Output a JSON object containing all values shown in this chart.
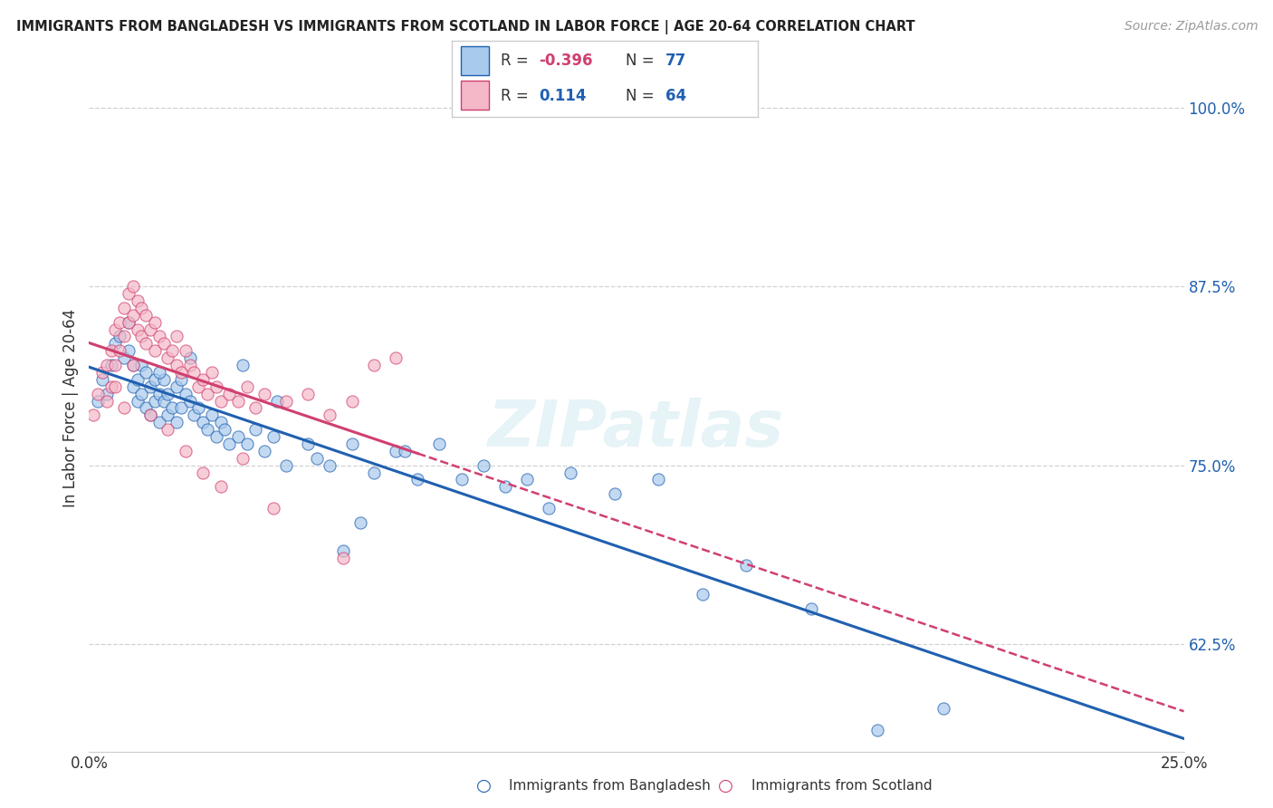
{
  "title": "IMMIGRANTS FROM BANGLADESH VS IMMIGRANTS FROM SCOTLAND IN LABOR FORCE | AGE 20-64 CORRELATION CHART",
  "source": "Source: ZipAtlas.com",
  "xlabel_blue": "Immigrants from Bangladesh",
  "xlabel_pink": "Immigrants from Scotland",
  "ylabel": "In Labor Force | Age 20-64",
  "R_blue": -0.396,
  "N_blue": 77,
  "R_pink": 0.114,
  "N_pink": 64,
  "xlim": [
    0.0,
    25.0
  ],
  "ylim": [
    55.0,
    103.0
  ],
  "yticks": [
    62.5,
    75.0,
    87.5,
    100.0
  ],
  "xticks": [
    0.0,
    25.0
  ],
  "color_blue": "#a8caec",
  "color_pink": "#f4b8c8",
  "trendline_blue": "#2060b0",
  "trendline_pink": "#d04070",
  "watermark": "ZIPatlas",
  "bg_color": "#ffffff",
  "grid_color": "#cccccc",
  "blue_scatter_x": [
    0.2,
    0.3,
    0.4,
    0.5,
    0.6,
    0.7,
    0.8,
    0.9,
    1.0,
    1.0,
    1.1,
    1.1,
    1.2,
    1.2,
    1.3,
    1.3,
    1.4,
    1.4,
    1.5,
    1.5,
    1.6,
    1.6,
    1.7,
    1.7,
    1.8,
    1.8,
    1.9,
    2.0,
    2.0,
    2.1,
    2.1,
    2.2,
    2.3,
    2.4,
    2.5,
    2.6,
    2.7,
    2.8,
    2.9,
    3.0,
    3.1,
    3.2,
    3.4,
    3.6,
    3.8,
    4.0,
    4.2,
    4.5,
    5.0,
    5.2,
    5.5,
    6.0,
    6.5,
    7.0,
    7.5,
    8.0,
    8.5,
    9.0,
    9.5,
    10.0,
    11.0,
    12.0,
    13.0,
    14.0,
    15.0,
    16.5,
    18.0,
    19.5,
    7.2,
    4.3,
    3.5,
    5.8,
    2.3,
    1.6,
    0.9,
    6.2,
    10.5
  ],
  "blue_scatter_y": [
    79.5,
    81.0,
    80.0,
    82.0,
    83.5,
    84.0,
    82.5,
    83.0,
    82.0,
    80.5,
    81.0,
    79.5,
    80.0,
    82.0,
    79.0,
    81.5,
    80.5,
    78.5,
    79.5,
    81.0,
    80.0,
    78.0,
    79.5,
    81.0,
    78.5,
    80.0,
    79.0,
    80.5,
    78.0,
    79.0,
    81.0,
    80.0,
    79.5,
    78.5,
    79.0,
    78.0,
    77.5,
    78.5,
    77.0,
    78.0,
    77.5,
    76.5,
    77.0,
    76.5,
    77.5,
    76.0,
    77.0,
    75.0,
    76.5,
    75.5,
    75.0,
    76.5,
    74.5,
    76.0,
    74.0,
    76.5,
    74.0,
    75.0,
    73.5,
    74.0,
    74.5,
    73.0,
    74.0,
    66.0,
    68.0,
    65.0,
    56.5,
    58.0,
    76.0,
    79.5,
    82.0,
    69.0,
    82.5,
    81.5,
    85.0,
    71.0,
    72.0
  ],
  "pink_scatter_x": [
    0.1,
    0.2,
    0.3,
    0.4,
    0.4,
    0.5,
    0.5,
    0.6,
    0.6,
    0.7,
    0.7,
    0.8,
    0.8,
    0.9,
    0.9,
    1.0,
    1.0,
    1.1,
    1.1,
    1.2,
    1.2,
    1.3,
    1.3,
    1.4,
    1.5,
    1.5,
    1.6,
    1.7,
    1.8,
    1.9,
    2.0,
    2.0,
    2.1,
    2.2,
    2.3,
    2.4,
    2.5,
    2.6,
    2.7,
    2.8,
    2.9,
    3.0,
    3.2,
    3.4,
    3.6,
    3.8,
    4.0,
    4.5,
    5.0,
    5.5,
    6.0,
    6.5,
    7.0,
    0.6,
    0.8,
    1.0,
    1.4,
    1.8,
    2.2,
    2.6,
    3.0,
    3.5,
    4.2,
    5.8
  ],
  "pink_scatter_y": [
    78.5,
    80.0,
    81.5,
    82.0,
    79.5,
    83.0,
    80.5,
    84.5,
    82.0,
    85.0,
    83.0,
    86.0,
    84.0,
    87.0,
    85.0,
    87.5,
    85.5,
    86.5,
    84.5,
    86.0,
    84.0,
    85.5,
    83.5,
    84.5,
    85.0,
    83.0,
    84.0,
    83.5,
    82.5,
    83.0,
    82.0,
    84.0,
    81.5,
    83.0,
    82.0,
    81.5,
    80.5,
    81.0,
    80.0,
    81.5,
    80.5,
    79.5,
    80.0,
    79.5,
    80.5,
    79.0,
    80.0,
    79.5,
    80.0,
    78.5,
    79.5,
    82.0,
    82.5,
    80.5,
    79.0,
    82.0,
    78.5,
    77.5,
    76.0,
    74.5,
    73.5,
    75.5,
    72.0,
    68.5
  ]
}
